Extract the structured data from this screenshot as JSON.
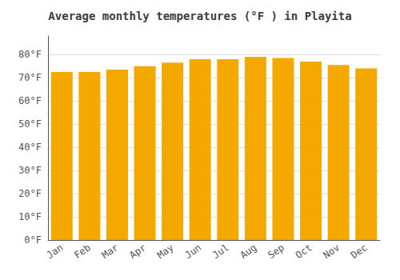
{
  "chart_data": {
    "type": "bar",
    "title": "Average monthly temperatures (°F ) in Playita",
    "categories": [
      "Jan",
      "Feb",
      "Mar",
      "Apr",
      "May",
      "Jun",
      "Jul",
      "Aug",
      "Sep",
      "Oct",
      "Nov",
      "Dec"
    ],
    "values": [
      72.5,
      72.5,
      73.5,
      75.0,
      76.5,
      78.0,
      78.0,
      79.0,
      78.5,
      77.0,
      75.5,
      74.0
    ],
    "color": "#F5A800",
    "ylim": [
      0,
      88
    ],
    "yticks": [
      {
        "value": 0,
        "label": "0°F"
      },
      {
        "value": 10,
        "label": "10°F"
      },
      {
        "value": 20,
        "label": "20°F"
      },
      {
        "value": 30,
        "label": "30°F"
      },
      {
        "value": 40,
        "label": "40°F"
      },
      {
        "value": 50,
        "label": "50°F"
      },
      {
        "value": 60,
        "label": "60°F"
      },
      {
        "value": 70,
        "label": "70°F"
      },
      {
        "value": 80,
        "label": "80°F"
      }
    ],
    "grid": true
  }
}
